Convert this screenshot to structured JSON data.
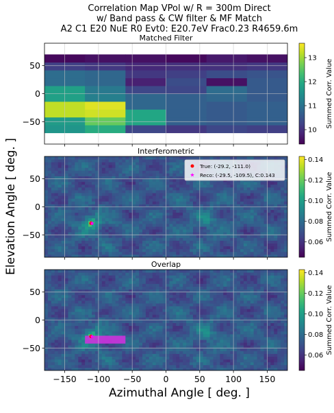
{
  "figure": {
    "title_lines": [
      "Correlation Map VPol w/ R = 300m Direct",
      "w/ Band pass & CW filter & MF Match",
      "A2 C1 E20 NuE R0 Evt0: E20.7eV Frac0.23 R4659.6m"
    ],
    "xlabel": "Azimuthal Angle [ deg. ]",
    "ylabel": "Elevation Angle [ deg. ]",
    "colorbar_label": "Summed Corr. Value"
  },
  "chart_data": [
    {
      "type": "heatmap",
      "title": "Matched Filter",
      "xlim": [
        -180,
        180
      ],
      "ylim": [
        -90,
        90
      ],
      "x_ticks": [
        -150,
        -100,
        -50,
        0,
        50,
        100,
        150
      ],
      "y_ticks": [
        50,
        0,
        -50
      ],
      "show_x_tick_labels": false,
      "colorbar": {
        "min": 9.4,
        "max": 13.6,
        "ticks": [
          10,
          11,
          12,
          13
        ]
      },
      "cell_edges_x": [
        -180,
        -120,
        -60,
        0,
        60,
        120,
        180
      ],
      "cell_edges_y": [
        -70,
        -56,
        -42,
        -28,
        -14,
        0,
        14,
        28,
        42,
        56,
        70
      ],
      "values_rows_bottom_to_top": [
        [
          11.6,
          12.0,
          10.3,
          10.1,
          10.3,
          10.2
        ],
        [
          11.7,
          12.6,
          11.9,
          10.7,
          10.6,
          10.7
        ],
        [
          13.2,
          13.3,
          11.9,
          10.7,
          10.6,
          10.7
        ],
        [
          13.2,
          13.4,
          10.8,
          10.7,
          10.6,
          10.7
        ],
        [
          11.8,
          11.2,
          10.8,
          10.7,
          10.8,
          10.6
        ],
        [
          11.8,
          11.1,
          10.3,
          10.3,
          10.9,
          10.6
        ],
        [
          10.9,
          10.8,
          9.8,
          10.4,
          9.6,
          10.6
        ],
        [
          10.9,
          10.8,
          10.1,
          10.2,
          10.4,
          10.5
        ],
        [
          10.2,
          10.1,
          9.9,
          10.0,
          10.0,
          10.1
        ],
        [
          9.5,
          9.6,
          9.6,
          9.5,
          9.7,
          9.6
        ]
      ]
    },
    {
      "type": "heatmap",
      "title": "Interferometric",
      "xlim": [
        -180,
        180
      ],
      "ylim": [
        -90,
        90
      ],
      "x_ticks": [
        -150,
        -100,
        -50,
        0,
        50,
        100,
        150
      ],
      "y_ticks": [
        50,
        0,
        -50
      ],
      "show_x_tick_labels": false,
      "colorbar": {
        "min": 0.045,
        "max": 0.143,
        "ticks": [
          0.06,
          0.08,
          0.1,
          0.12,
          0.14
        ]
      },
      "true_point": {
        "az": -111.0,
        "el": -29.2
      },
      "reco_point": {
        "az": -109.5,
        "el": -29.5,
        "corr": 0.143
      },
      "legend": {
        "position": "upper right",
        "entries": [
          "True: (-29.2, -111.0)",
          "Reco: (-29.5, -109.5), C:0.143"
        ]
      }
    },
    {
      "type": "heatmap",
      "title": "Overlap",
      "xlim": [
        -180,
        180
      ],
      "ylim": [
        -90,
        90
      ],
      "x_ticks": [
        -150,
        -100,
        -50,
        0,
        50,
        100,
        150
      ],
      "y_ticks": [
        50,
        0,
        -50
      ],
      "show_x_tick_labels": true,
      "colorbar": {
        "min": 0.045,
        "max": 0.143,
        "ticks": [
          0.06,
          0.08,
          0.1,
          0.12,
          0.14
        ]
      },
      "true_point": {
        "az": -111.0,
        "el": -29.2
      },
      "reco_point": {
        "az": -109.5,
        "el": -29.5
      },
      "overlap_region": {
        "az": [
          -120,
          -60
        ],
        "el": [
          -28,
          -42
        ]
      },
      "overlap_color": "#cc33dd"
    }
  ],
  "colors": {
    "true_marker": "#ff0000",
    "reco_marker": "#ff00ff",
    "grid": "#c8c8c8"
  }
}
